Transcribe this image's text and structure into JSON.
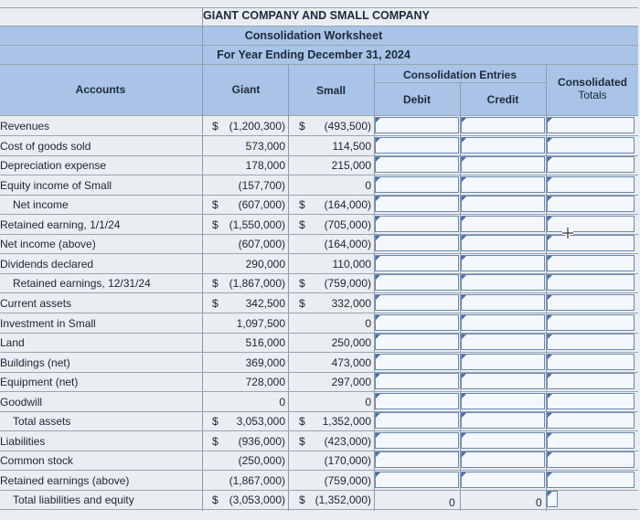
{
  "title": {
    "company": "GIANT COMPANY AND SMALL COMPANY",
    "worksheet": "Consolidation Worksheet",
    "period": "For Year Ending December 31, 2024"
  },
  "headers": {
    "accounts": "Accounts",
    "giant": "Giant",
    "small": "Small",
    "consolidation_entries": "Consolidation Entries",
    "debit": "Debit",
    "credit": "Credit",
    "consolidated_totals_1": "Consolidated",
    "consolidated_totals_2": "Totals"
  },
  "rows": [
    {
      "account": "Revenues",
      "giant_dollar": "$",
      "giant": "(1,200,300)",
      "small_dollar": "$",
      "small": "(493,500)",
      "indent": false
    },
    {
      "account": "Cost of goods sold",
      "giant_dollar": "",
      "giant": "573,000",
      "small_dollar": "",
      "small": "114,500",
      "indent": false
    },
    {
      "account": "Depreciation expense",
      "giant_dollar": "",
      "giant": "178,000",
      "small_dollar": "",
      "small": "215,000",
      "indent": false
    },
    {
      "account": "Equity income of Small",
      "giant_dollar": "",
      "giant": "(157,700)",
      "small_dollar": "",
      "small": "0",
      "indent": false
    },
    {
      "account": "Net income",
      "giant_dollar": "$",
      "giant": "(607,000)",
      "small_dollar": "$",
      "small": "(164,000)",
      "indent": true
    },
    {
      "account": "Retained earning, 1/1/24",
      "giant_dollar": "$",
      "giant": "(1,550,000)",
      "small_dollar": "$",
      "small": "(705,000)",
      "indent": false
    },
    {
      "account": "Net income (above)",
      "giant_dollar": "",
      "giant": "(607,000)",
      "small_dollar": "",
      "small": "(164,000)",
      "indent": false
    },
    {
      "account": "Dividends declared",
      "giant_dollar": "",
      "giant": "290,000",
      "small_dollar": "",
      "small": "110,000",
      "indent": false
    },
    {
      "account": "Retained earnings, 12/31/24",
      "giant_dollar": "$",
      "giant": "(1,867,000)",
      "small_dollar": "$",
      "small": "(759,000)",
      "indent": true
    },
    {
      "account": "Current assets",
      "giant_dollar": "$",
      "giant": "342,500",
      "small_dollar": "$",
      "small": "332,000",
      "indent": false
    },
    {
      "account": "Investment in Small",
      "giant_dollar": "",
      "giant": "1,097,500",
      "small_dollar": "",
      "small": "0",
      "indent": false
    },
    {
      "account": "Land",
      "giant_dollar": "",
      "giant": "516,000",
      "small_dollar": "",
      "small": "250,000",
      "indent": false
    },
    {
      "account": "Buildings (net)",
      "giant_dollar": "",
      "giant": "369,000",
      "small_dollar": "",
      "small": "473,000",
      "indent": false
    },
    {
      "account": "Equipment (net)",
      "giant_dollar": "",
      "giant": "728,000",
      "small_dollar": "",
      "small": "297,000",
      "indent": false
    },
    {
      "account": "Goodwill",
      "giant_dollar": "",
      "giant": "0",
      "small_dollar": "",
      "small": "0",
      "indent": false
    },
    {
      "account": "Total assets",
      "giant_dollar": "$",
      "giant": "3,053,000",
      "small_dollar": "$",
      "small": "1,352,000",
      "indent": true
    },
    {
      "account": "Liabilities",
      "giant_dollar": "$",
      "giant": "(936,000)",
      "small_dollar": "$",
      "small": "(423,000)",
      "indent": false
    },
    {
      "account": "Common stock",
      "giant_dollar": "",
      "giant": "(250,000)",
      "small_dollar": "",
      "small": "(170,000)",
      "indent": false
    },
    {
      "account": "Retained earnings (above)",
      "giant_dollar": "",
      "giant": "(1,867,000)",
      "small_dollar": "",
      "small": "(759,000)",
      "indent": false
    },
    {
      "account": "Total liabilities and equity",
      "giant_dollar": "$",
      "giant": "(3,053,000)",
      "small_dollar": "$",
      "small": "(1,352,000)",
      "indent": true
    }
  ],
  "totals": {
    "debit": "0",
    "credit": "0"
  },
  "icons": {
    "cursor": "crosshair-cursor-icon"
  },
  "colors": {
    "header_band": "#a9c4e6",
    "input_border": "#6a87b3"
  }
}
